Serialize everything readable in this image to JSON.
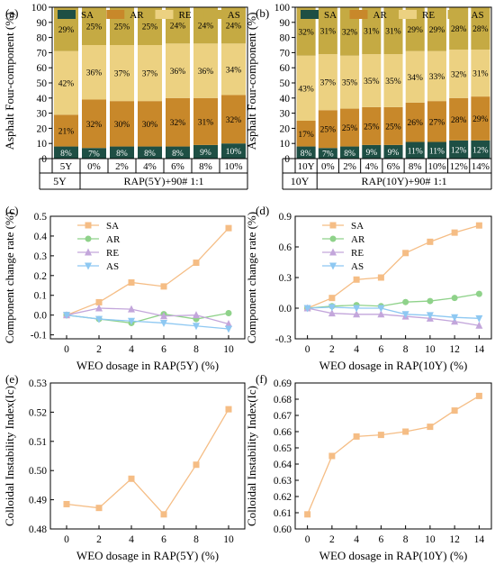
{
  "colors": {
    "SA": "#1e4f44",
    "AR": "#c8882a",
    "RE": "#ecd181",
    "AS": "#c5aa43",
    "line_SA": "#f5bd85",
    "line_AR": "#8fd28a",
    "line_RE": "#c3a6db",
    "line_AS": "#8ec8f2"
  },
  "chart_data": [
    {
      "id": "a",
      "panel_label": "(a)",
      "type": "bar",
      "stacked": true,
      "ylabel": "Asphalt Four-component (%)",
      "ylim": [
        0,
        100
      ],
      "yticks": [
        "0",
        "10",
        "20",
        "30",
        "40",
        "50",
        "60",
        "70",
        "80",
        "90",
        "100"
      ],
      "legend": [
        "SA",
        "AR",
        "RE",
        "AS"
      ],
      "categories": [
        "5Y",
        "0%",
        "2%",
        "4%",
        "6%",
        "8%",
        "10%"
      ],
      "series": [
        {
          "name": "SA",
          "values": [
            8,
            7,
            8,
            8,
            8,
            9,
            10
          ],
          "labels": [
            "8%",
            "7%",
            "8%",
            "8%",
            "8%",
            "9%",
            "10%"
          ]
        },
        {
          "name": "AR",
          "values": [
            21,
            32,
            30,
            30,
            32,
            31,
            32
          ],
          "labels": [
            "21%",
            "32%",
            "30%",
            "30%",
            "32%",
            "31%",
            "32%"
          ]
        },
        {
          "name": "RE",
          "values": [
            42,
            36,
            37,
            37,
            36,
            36,
            34
          ],
          "labels": [
            "42%",
            "36%",
            "37%",
            "37%",
            "36%",
            "36%",
            "34%"
          ]
        },
        {
          "name": "AS",
          "values": [
            29,
            25,
            25,
            25,
            24,
            24,
            24
          ],
          "labels": [
            "29%",
            "25%",
            "25%",
            "25%",
            "24%",
            "24%",
            "24%"
          ]
        }
      ],
      "group_labels": [
        "5Y",
        "RAP(5Y)+90# 1:1"
      ]
    },
    {
      "id": "b",
      "panel_label": "(b)",
      "type": "bar",
      "stacked": true,
      "ylabel": "Asphalt Four-component (%)",
      "ylim": [
        0,
        100
      ],
      "yticks": [
        "0",
        "10",
        "20",
        "30",
        "40",
        "50",
        "60",
        "70",
        "80",
        "90",
        "100"
      ],
      "legend": [
        "SA",
        "AR",
        "RE",
        "AS"
      ],
      "categories": [
        "10Y",
        "0%",
        "2%",
        "4%",
        "6%",
        "8%",
        "10%",
        "12%",
        "14%"
      ],
      "series": [
        {
          "name": "SA",
          "values": [
            8,
            7,
            8,
            9,
            9,
            11,
            11,
            12,
            12
          ],
          "labels": [
            "8%",
            "7%",
            "8%",
            "9%",
            "9%",
            "11%",
            "11%",
            "12%",
            "12%"
          ]
        },
        {
          "name": "AR",
          "values": [
            17,
            25,
            25,
            25,
            25,
            26,
            27,
            28,
            29
          ],
          "labels": [
            "17%",
            "25%",
            "25%",
            "25%",
            "25%",
            "26%",
            "27%",
            "28%",
            "29%"
          ]
        },
        {
          "name": "RE",
          "values": [
            43,
            37,
            35,
            35,
            35,
            34,
            33,
            32,
            31
          ],
          "labels": [
            "43%",
            "37%",
            "35%",
            "35%",
            "35%",
            "34%",
            "33%",
            "32%",
            "31%"
          ]
        },
        {
          "name": "AS",
          "values": [
            32,
            31,
            32,
            31,
            31,
            29,
            29,
            28,
            28
          ],
          "labels": [
            "32%",
            "31%",
            "32%",
            "31%",
            "31%",
            "29%",
            "29%",
            "28%",
            "28%"
          ]
        }
      ],
      "group_labels": [
        "10Y",
        "RAP(10Y)+90# 1:1"
      ]
    },
    {
      "id": "c",
      "panel_label": "(c)",
      "type": "line",
      "xlabel": "WEO dosage in RAP(5Y) (%)",
      "ylabel": "Component change rate (%)",
      "x": [
        0,
        2,
        4,
        6,
        8,
        10
      ],
      "xlim": [
        -1,
        11
      ],
      "xticks": [
        "0",
        "2",
        "4",
        "6",
        "8",
        "10"
      ],
      "ylim": [
        -0.12,
        0.5
      ],
      "yticks": [
        "-0.1",
        "0.0",
        "0.1",
        "0.2",
        "0.3",
        "0.4",
        "0.5"
      ],
      "legend_position": "top-left",
      "series": [
        {
          "name": "SA",
          "marker": "square",
          "values": [
            0,
            0.065,
            0.165,
            0.145,
            0.265,
            0.44
          ]
        },
        {
          "name": "AR",
          "marker": "circle",
          "values": [
            0,
            -0.02,
            -0.04,
            0.005,
            -0.02,
            0.01
          ]
        },
        {
          "name": "RE",
          "marker": "triangle-up",
          "values": [
            0,
            0.035,
            0.03,
            -0.005,
            0.0,
            -0.045
          ]
        },
        {
          "name": "AS",
          "marker": "triangle-down",
          "values": [
            0,
            -0.02,
            -0.03,
            -0.04,
            -0.055,
            -0.07
          ]
        }
      ]
    },
    {
      "id": "d",
      "panel_label": "(d)",
      "type": "line",
      "xlabel": "WEO dosage in RAP(10Y) (%)",
      "ylabel": "Component change rate (%)",
      "x": [
        0,
        2,
        4,
        6,
        8,
        10,
        12,
        14
      ],
      "xlim": [
        -1,
        15
      ],
      "xticks": [
        "0",
        "2",
        "4",
        "6",
        "8",
        "10",
        "12",
        "14"
      ],
      "ylim": [
        -0.3,
        0.9
      ],
      "yticks": [
        "-0.3",
        "0.0",
        "0.3",
        "0.6",
        "0.9"
      ],
      "legend_position": "top-left",
      "series": [
        {
          "name": "SA",
          "marker": "square",
          "values": [
            0,
            0.1,
            0.28,
            0.3,
            0.54,
            0.65,
            0.74,
            0.81
          ]
        },
        {
          "name": "AR",
          "marker": "circle",
          "values": [
            0,
            0.02,
            0.03,
            0.02,
            0.06,
            0.07,
            0.1,
            0.14
          ]
        },
        {
          "name": "RE",
          "marker": "triangle-up",
          "values": [
            0,
            -0.05,
            -0.06,
            -0.06,
            -0.08,
            -0.1,
            -0.13,
            -0.17
          ]
        },
        {
          "name": "AS",
          "marker": "triangle-down",
          "values": [
            0,
            0.01,
            0.0,
            0.0,
            -0.06,
            -0.07,
            -0.09,
            -0.1
          ]
        }
      ]
    },
    {
      "id": "e",
      "panel_label": "(e)",
      "type": "line",
      "xlabel": "WEO dosage in RAP(5Y) (%)",
      "ylabel": "Colloidal Instability Index(Ic)",
      "x": [
        0,
        2,
        4,
        6,
        8,
        10
      ],
      "xlim": [
        -1,
        11
      ],
      "xticks": [
        "0",
        "2",
        "4",
        "6",
        "8",
        "10"
      ],
      "ylim": [
        0.48,
        0.53
      ],
      "yticks": [
        "0.48",
        "0.49",
        "0.50",
        "0.51",
        "0.52",
        "0.53"
      ],
      "series": [
        {
          "marker": "square",
          "values": [
            0.4885,
            0.4872,
            0.4972,
            0.485,
            0.502,
            0.521
          ]
        }
      ]
    },
    {
      "id": "f",
      "panel_label": "(f)",
      "type": "line",
      "xlabel": "WEO dosage in RAP(10Y) (%)",
      "ylabel": "Colloidal Instability Index(Ic)",
      "x": [
        0,
        2,
        4,
        6,
        8,
        10,
        12,
        14
      ],
      "xlim": [
        -1,
        15
      ],
      "xticks": [
        "0",
        "2",
        "4",
        "6",
        "8",
        "10",
        "12",
        "14"
      ],
      "ylim": [
        0.6,
        0.69
      ],
      "yticks": [
        "0.60",
        "0.61",
        "0.62",
        "0.63",
        "0.64",
        "0.65",
        "0.66",
        "0.67",
        "0.68",
        "0.69"
      ],
      "series": [
        {
          "marker": "square",
          "values": [
            0.609,
            0.645,
            0.657,
            0.658,
            0.66,
            0.663,
            0.673,
            0.682
          ]
        }
      ]
    }
  ]
}
